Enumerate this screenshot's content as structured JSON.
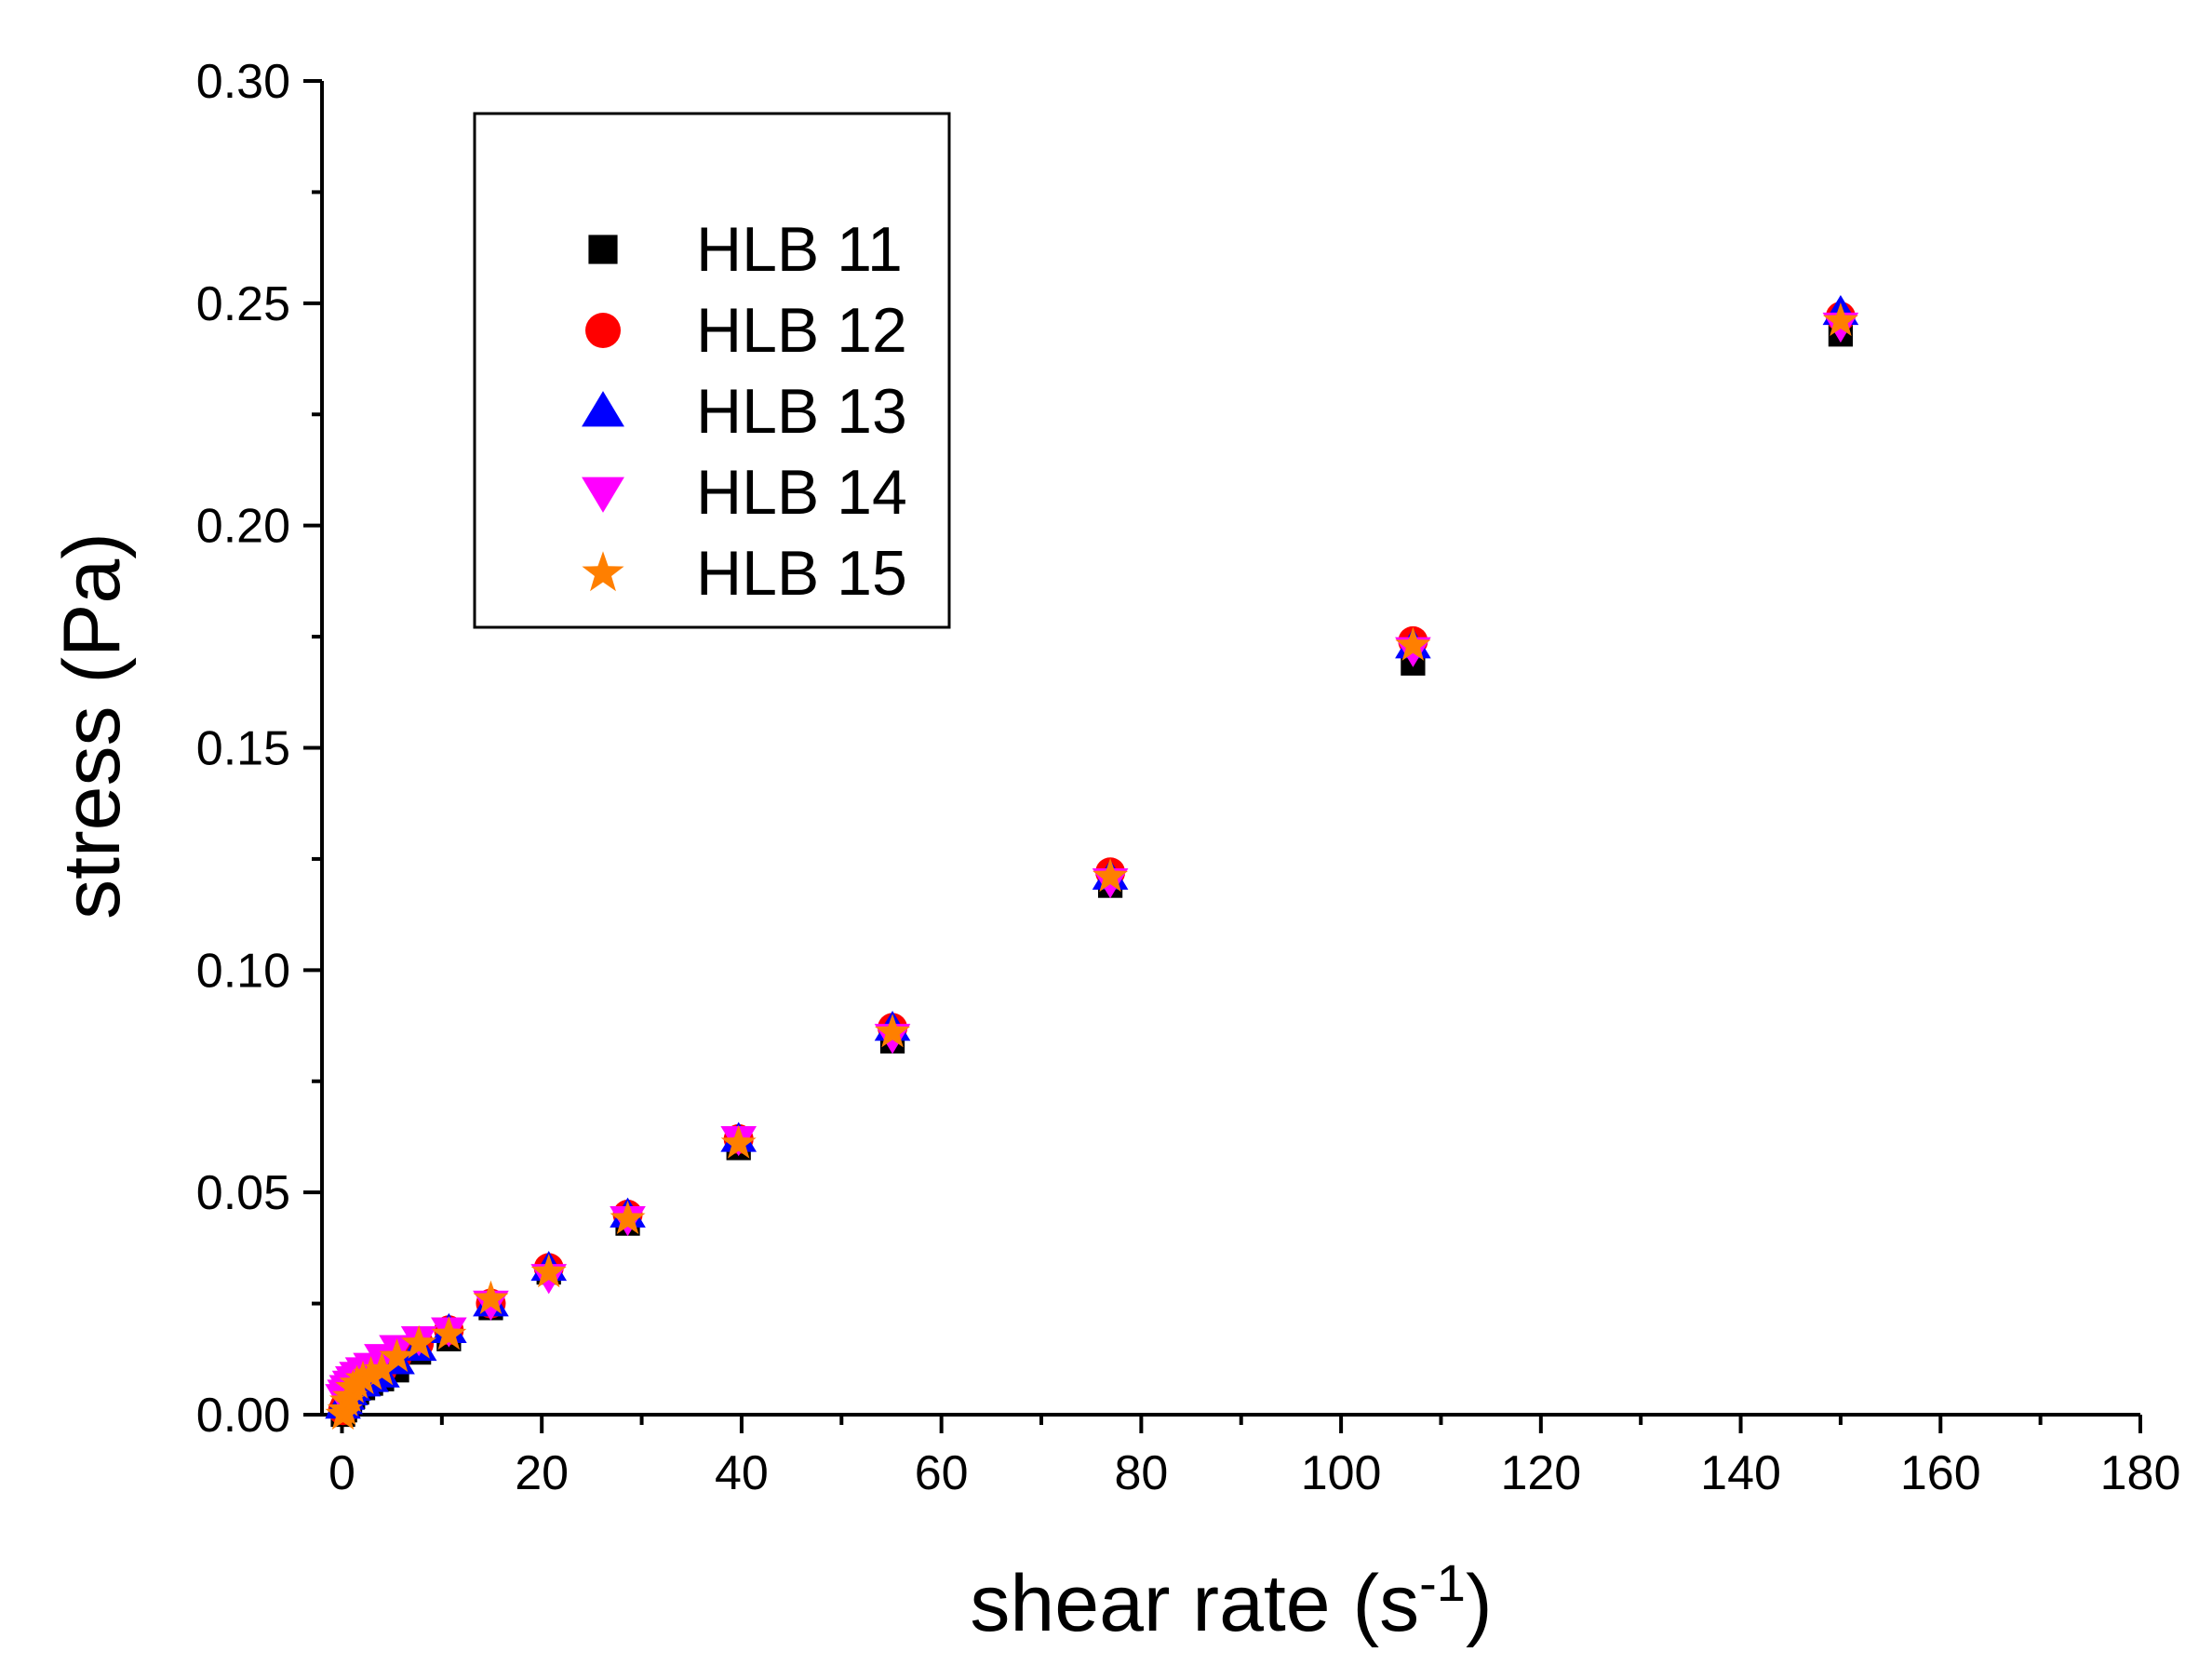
{
  "chart_data": {
    "type": "scatter",
    "title": "",
    "xlabel": "shear rate (s",
    "xlabel_sup": "-1",
    "xlabel_close": ")",
    "ylabel": "stress (Pa)",
    "xlim": [
      -2,
      180
    ],
    "ylim": [
      0,
      0.3
    ],
    "xticks": [
      0,
      20,
      40,
      60,
      80,
      100,
      120,
      140,
      160,
      180
    ],
    "xtick_labels": [
      "0",
      "20",
      "40",
      "60",
      "80",
      "100",
      "120",
      "140",
      "160",
      "180"
    ],
    "yticks": [
      0.0,
      0.05,
      0.1,
      0.15,
      0.2,
      0.25,
      0.3
    ],
    "ytick_labels": [
      "0.00",
      "0.05",
      "0.10",
      "0.15",
      "0.20",
      "0.25",
      "0.30"
    ],
    "legend_position": "top-left",
    "grid": false,
    "series": [
      {
        "name": "HLB 11",
        "marker": "square",
        "color": "#000000",
        "points": [
          [
            0.1,
            0.0
          ],
          [
            0.3,
            0.001
          ],
          [
            0.5,
            0.002
          ],
          [
            0.8,
            0.003
          ],
          [
            1.1,
            0.004
          ],
          [
            1.5,
            0.005
          ],
          [
            2.1,
            0.006
          ],
          [
            2.9,
            0.007
          ],
          [
            4.0,
            0.008
          ],
          [
            5.5,
            0.01
          ],
          [
            7.7,
            0.014
          ],
          [
            10.7,
            0.017
          ],
          [
            14.9,
            0.024
          ],
          [
            20.7,
            0.032
          ],
          [
            28.6,
            0.043
          ],
          [
            39.7,
            0.06
          ],
          [
            55.1,
            0.084
          ],
          [
            76.9,
            0.119
          ],
          [
            107.2,
            0.169
          ],
          [
            150.0,
            0.243
          ]
        ]
      },
      {
        "name": "HLB 12",
        "marker": "circle",
        "color": "#ff0000",
        "points": [
          [
            0.1,
            0.001
          ],
          [
            0.3,
            0.002
          ],
          [
            0.5,
            0.003
          ],
          [
            0.8,
            0.005
          ],
          [
            1.1,
            0.006
          ],
          [
            1.5,
            0.007
          ],
          [
            2.1,
            0.008
          ],
          [
            2.9,
            0.009
          ],
          [
            4.0,
            0.01
          ],
          [
            5.5,
            0.013
          ],
          [
            7.7,
            0.016
          ],
          [
            10.7,
            0.019
          ],
          [
            14.9,
            0.025
          ],
          [
            20.7,
            0.033
          ],
          [
            28.6,
            0.045
          ],
          [
            39.7,
            0.062
          ],
          [
            55.1,
            0.087
          ],
          [
            76.9,
            0.122
          ],
          [
            107.2,
            0.174
          ],
          [
            150.0,
            0.247
          ]
        ]
      },
      {
        "name": "HLB 13",
        "marker": "triangle-up",
        "color": "#0000ff",
        "points": [
          [
            0.1,
            0.002
          ],
          [
            0.3,
            0.003
          ],
          [
            0.5,
            0.004
          ],
          [
            0.8,
            0.005
          ],
          [
            1.1,
            0.006
          ],
          [
            1.5,
            0.007
          ],
          [
            2.1,
            0.007
          ],
          [
            2.9,
            0.008
          ],
          [
            4.0,
            0.009
          ],
          [
            5.5,
            0.012
          ],
          [
            7.7,
            0.015
          ],
          [
            10.7,
            0.019
          ],
          [
            14.9,
            0.025
          ],
          [
            20.7,
            0.033
          ],
          [
            28.6,
            0.045
          ],
          [
            39.7,
            0.062
          ],
          [
            55.1,
            0.087
          ],
          [
            76.9,
            0.121
          ],
          [
            107.2,
            0.173
          ],
          [
            150.0,
            0.248
          ]
        ]
      },
      {
        "name": "HLB 14",
        "marker": "triangle-down",
        "color": "#ff00ff",
        "points": [
          [
            0.1,
            0.004
          ],
          [
            0.3,
            0.005
          ],
          [
            0.5,
            0.006
          ],
          [
            0.8,
            0.007
          ],
          [
            1.1,
            0.008
          ],
          [
            1.5,
            0.009
          ],
          [
            2.1,
            0.01
          ],
          [
            2.9,
            0.011
          ],
          [
            4.0,
            0.013
          ],
          [
            5.5,
            0.015
          ],
          [
            7.7,
            0.017
          ],
          [
            10.7,
            0.019
          ],
          [
            14.9,
            0.025
          ],
          [
            20.7,
            0.031
          ],
          [
            28.6,
            0.044
          ],
          [
            39.7,
            0.062
          ],
          [
            55.1,
            0.085
          ],
          [
            76.9,
            0.12
          ],
          [
            107.2,
            0.172
          ],
          [
            150.0,
            0.245
          ]
        ]
      },
      {
        "name": "HLB 15",
        "marker": "star",
        "color": "#ff7f00",
        "points": [
          [
            0.1,
            0.0
          ],
          [
            0.3,
            0.001
          ],
          [
            0.5,
            0.003
          ],
          [
            0.8,
            0.004
          ],
          [
            1.1,
            0.006
          ],
          [
            1.5,
            0.007
          ],
          [
            2.1,
            0.008
          ],
          [
            2.9,
            0.009
          ],
          [
            4.0,
            0.01
          ],
          [
            5.5,
            0.013
          ],
          [
            7.7,
            0.016
          ],
          [
            10.7,
            0.018
          ],
          [
            14.9,
            0.026
          ],
          [
            20.7,
            0.032
          ],
          [
            28.6,
            0.044
          ],
          [
            39.7,
            0.061
          ],
          [
            55.1,
            0.086
          ],
          [
            76.9,
            0.121
          ],
          [
            107.2,
            0.173
          ],
          [
            150.0,
            0.246
          ]
        ]
      }
    ]
  }
}
